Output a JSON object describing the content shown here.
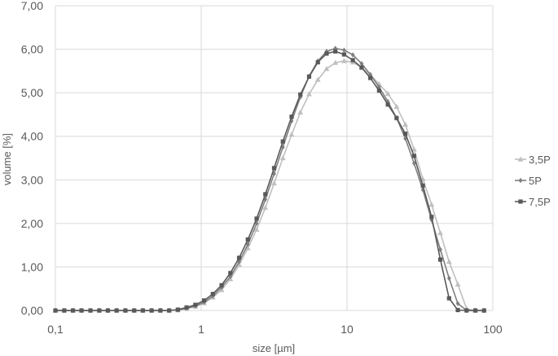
{
  "chart_data": {
    "type": "line",
    "xlabel": "size [µm]",
    "ylabel": "volume [%]",
    "x_scale": "log",
    "xlim": [
      0.1,
      100
    ],
    "ylim": [
      0,
      7
    ],
    "x_ticks": [
      0.1,
      1,
      10,
      100
    ],
    "x_tick_labels": [
      "0,1",
      "1",
      "10",
      "100"
    ],
    "y_ticks": [
      0,
      1,
      2,
      3,
      4,
      5,
      6,
      7
    ],
    "y_tick_labels": [
      "0,00",
      "1,00",
      "2,00",
      "3,00",
      "4,00",
      "5,00",
      "6,00",
      "7,00"
    ],
    "grid": "vertical and horizontal major",
    "legend_position": "right",
    "x": [
      0.1,
      0.115,
      0.132,
      0.151,
      0.174,
      0.2,
      0.229,
      0.263,
      0.302,
      0.347,
      0.398,
      0.457,
      0.525,
      0.603,
      0.692,
      0.794,
      0.912,
      1.047,
      1.202,
      1.38,
      1.585,
      1.82,
      2.089,
      2.399,
      2.754,
      3.162,
      3.631,
      4.169,
      4.786,
      5.495,
      6.31,
      7.244,
      8.318,
      9.55,
      10.965,
      12.589,
      14.454,
      16.596,
      19.055,
      21.878,
      25.119,
      28.84,
      33.113,
      38.019,
      43.652,
      50.119,
      57.544,
      66.069,
      75.858,
      87.096
    ],
    "series": [
      {
        "name": "3,5P",
        "color": "#bfbfbf",
        "marker": "triangle",
        "values": [
          0,
          0,
          0,
          0,
          0,
          0,
          0,
          0,
          0,
          0,
          0,
          0,
          0,
          0,
          0.01,
          0.04,
          0.09,
          0.17,
          0.3,
          0.47,
          0.72,
          1.05,
          1.43,
          1.86,
          2.36,
          2.92,
          3.5,
          4.04,
          4.55,
          4.97,
          5.3,
          5.55,
          5.69,
          5.73,
          5.7,
          5.58,
          5.41,
          5.2,
          4.98,
          4.68,
          4.27,
          3.7,
          3.02,
          2.43,
          1.78,
          1.12,
          0.6,
          0.04,
          0,
          0
        ]
      },
      {
        "name": "5P",
        "color": "#7f7f7f",
        "marker": "diamond",
        "values": [
          0,
          0,
          0,
          0,
          0,
          0,
          0,
          0,
          0,
          0,
          0,
          0,
          0,
          0,
          0.01,
          0.05,
          0.1,
          0.19,
          0.33,
          0.53,
          0.78,
          1.12,
          1.52,
          2.0,
          2.55,
          3.14,
          3.75,
          4.35,
          4.9,
          5.38,
          5.73,
          5.95,
          6.02,
          5.98,
          5.87,
          5.67,
          5.42,
          5.13,
          4.8,
          4.42,
          3.95,
          3.38,
          2.77,
          2.08,
          1.4,
          0.74,
          0.16,
          0,
          0,
          0
        ]
      },
      {
        "name": "7,5P",
        "color": "#595959",
        "marker": "square",
        "values": [
          0,
          0,
          0,
          0,
          0,
          0,
          0,
          0,
          0,
          0,
          0,
          0,
          0,
          0,
          0.02,
          0.07,
          0.13,
          0.23,
          0.38,
          0.58,
          0.86,
          1.21,
          1.63,
          2.11,
          2.67,
          3.27,
          3.88,
          4.45,
          4.96,
          5.37,
          5.7,
          5.9,
          5.95,
          5.88,
          5.75,
          5.58,
          5.34,
          5.05,
          4.73,
          4.42,
          4.06,
          3.55,
          2.87,
          2.15,
          1.17,
          0.28,
          0.01,
          0,
          0,
          0
        ]
      }
    ]
  }
}
